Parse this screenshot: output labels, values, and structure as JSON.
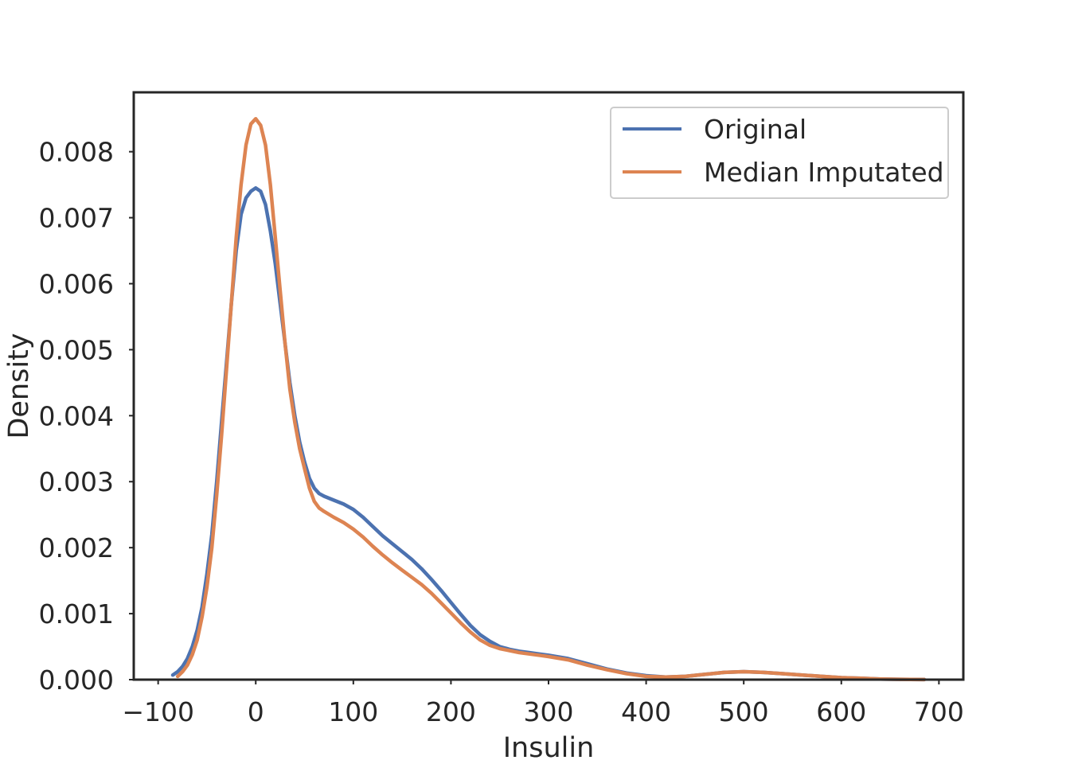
{
  "chart_data": {
    "type": "line",
    "xlabel": "Insulin",
    "ylabel": "Density",
    "xlim": [
      -125,
      725
    ],
    "ylim": [
      0,
      0.0089
    ],
    "xticks": [
      -100,
      0,
      100,
      200,
      300,
      400,
      500,
      600,
      700
    ],
    "xtick_labels": [
      "−100",
      "0",
      "100",
      "200",
      "300",
      "400",
      "500",
      "600",
      "700"
    ],
    "yticks": [
      0,
      0.001,
      0.002,
      0.003,
      0.004,
      0.005,
      0.006,
      0.007,
      0.008
    ],
    "ytick_labels": [
      "0.000",
      "0.001",
      "0.002",
      "0.003",
      "0.004",
      "0.005",
      "0.006",
      "0.007",
      "0.008"
    ],
    "grid": false,
    "legend": {
      "placement": "top-right"
    },
    "series": [
      {
        "name": "Original",
        "color": "#4c72b0",
        "x": [
          -85,
          -80,
          -75,
          -70,
          -65,
          -60,
          -55,
          -50,
          -45,
          -40,
          -35,
          -30,
          -25,
          -20,
          -15,
          -10,
          -5,
          0,
          5,
          10,
          15,
          20,
          25,
          30,
          35,
          40,
          45,
          50,
          55,
          60,
          65,
          70,
          80,
          90,
          100,
          110,
          120,
          130,
          140,
          150,
          160,
          170,
          180,
          190,
          200,
          210,
          220,
          230,
          240,
          250,
          260,
          270,
          280,
          290,
          300,
          320,
          340,
          360,
          380,
          400,
          420,
          440,
          460,
          480,
          500,
          520,
          540,
          560,
          580,
          600,
          620,
          640,
          660,
          685
        ],
        "y": [
          7e-05,
          0.00012,
          0.0002,
          0.00032,
          0.0005,
          0.00075,
          0.0011,
          0.0016,
          0.0022,
          0.003,
          0.0039,
          0.0048,
          0.0057,
          0.0065,
          0.00705,
          0.0073,
          0.0074,
          0.00745,
          0.0074,
          0.0072,
          0.0068,
          0.0063,
          0.0057,
          0.0051,
          0.0045,
          0.004,
          0.0036,
          0.0033,
          0.00305,
          0.0029,
          0.00282,
          0.00278,
          0.00272,
          0.00266,
          0.00258,
          0.00246,
          0.00232,
          0.00218,
          0.00206,
          0.00194,
          0.00182,
          0.00168,
          0.00152,
          0.00135,
          0.00117,
          0.00099,
          0.00082,
          0.00068,
          0.00058,
          0.0005,
          0.00046,
          0.00043,
          0.00041,
          0.00039,
          0.00037,
          0.00032,
          0.00024,
          0.00016,
          0.0001,
          6e-05,
          4e-05,
          5e-05,
          8e-05,
          0.00011,
          0.00012,
          0.00011,
          9e-05,
          7e-05,
          5e-05,
          3e-05,
          2e-05,
          1e-05,
          5e-06,
          1e-06
        ]
      },
      {
        "name": "Median Imputated",
        "color": "#dd8452",
        "x": [
          -80,
          -75,
          -70,
          -65,
          -60,
          -55,
          -50,
          -45,
          -40,
          -35,
          -30,
          -25,
          -20,
          -15,
          -10,
          -5,
          0,
          5,
          10,
          15,
          20,
          25,
          30,
          35,
          40,
          45,
          50,
          55,
          60,
          65,
          70,
          80,
          90,
          100,
          110,
          120,
          130,
          140,
          150,
          160,
          170,
          180,
          190,
          200,
          210,
          220,
          230,
          240,
          250,
          260,
          270,
          280,
          290,
          300,
          320,
          340,
          360,
          380,
          400,
          420,
          440,
          460,
          480,
          500,
          520,
          540,
          560,
          580,
          600,
          620,
          640,
          660,
          685
        ],
        "y": [
          5e-05,
          0.00012,
          0.00022,
          0.00038,
          0.0006,
          0.00095,
          0.0014,
          0.002,
          0.0028,
          0.0037,
          0.0047,
          0.0057,
          0.0067,
          0.0075,
          0.0081,
          0.00842,
          0.0085,
          0.0084,
          0.0081,
          0.0075,
          0.0067,
          0.0059,
          0.0051,
          0.0044,
          0.0039,
          0.0035,
          0.0032,
          0.0029,
          0.0027,
          0.0026,
          0.00255,
          0.00246,
          0.00238,
          0.00228,
          0.00216,
          0.00202,
          0.00189,
          0.00177,
          0.00166,
          0.00155,
          0.00144,
          0.00131,
          0.00116,
          0.00101,
          0.00086,
          0.00072,
          0.0006,
          0.00052,
          0.00047,
          0.00044,
          0.00041,
          0.00039,
          0.00037,
          0.00035,
          0.0003,
          0.00022,
          0.00015,
          9e-05,
          5e-05,
          4e-05,
          5e-05,
          8e-05,
          0.00011,
          0.00012,
          0.00011,
          9e-05,
          7e-05,
          5e-05,
          3e-05,
          2e-05,
          1e-05,
          5e-06,
          1e-06
        ]
      }
    ]
  }
}
